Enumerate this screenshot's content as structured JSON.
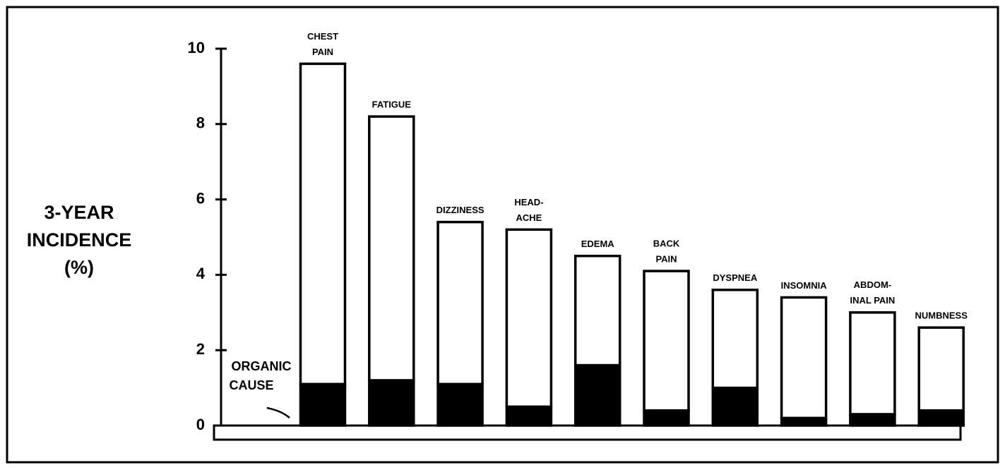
{
  "chart_data": {
    "type": "stacked_bar",
    "ylabel": [
      "3-YEAR",
      "INCIDENCE",
      "(%)"
    ],
    "annotation": [
      "ORGANIC",
      "CAUSE"
    ],
    "categories": [
      [
        "CHEST",
        "PAIN"
      ],
      [
        "FATIGUE"
      ],
      [
        "DIZZINESS"
      ],
      [
        "HEAD-",
        "ACHE"
      ],
      [
        "EDEMA"
      ],
      [
        "BACK",
        "PAIN"
      ],
      [
        "DYSPNEA"
      ],
      [
        "INSOMNIA"
      ],
      [
        "ABDOM-",
        "INAL PAIN"
      ],
      [
        "NUMBNESS"
      ]
    ],
    "series": [
      {
        "name": "ORGANIC CAUSE",
        "color": "#000000",
        "values": [
          1.1,
          1.2,
          1.1,
          0.5,
          1.6,
          0.4,
          1.0,
          0.2,
          0.3,
          0.4
        ]
      },
      {
        "color": "#ffffff",
        "values": [
          8.5,
          7.0,
          4.3,
          4.7,
          2.9,
          3.7,
          2.6,
          3.2,
          2.7,
          2.2
        ]
      }
    ],
    "ylim": [
      0,
      10
    ],
    "yticks": [
      0,
      2,
      4,
      6,
      8,
      10
    ]
  }
}
